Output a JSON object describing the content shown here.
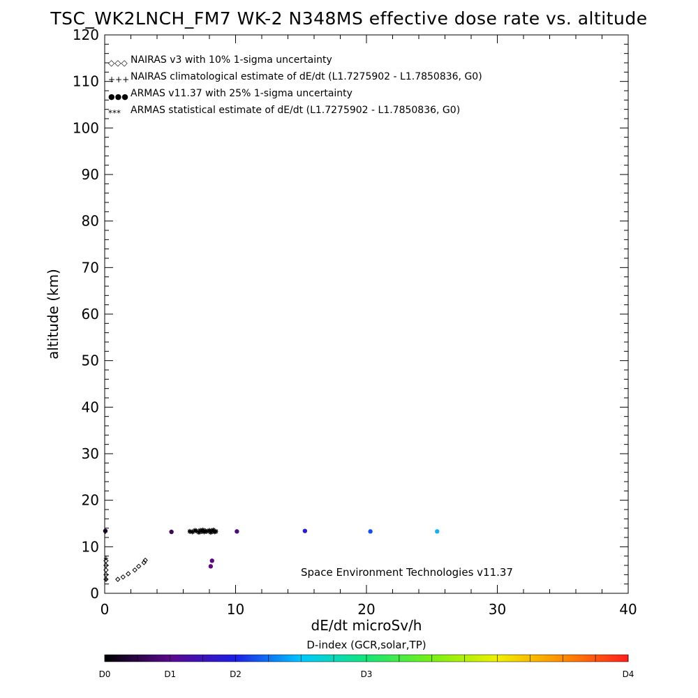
{
  "chart_data": {
    "type": "scatter",
    "title": "TSC_WK2LNCH_FM7 WK-2 N348MS effective dose rate vs. altitude",
    "xlabel": "dE/dt microSv/h",
    "ylabel": "altitude (km)",
    "xlim": [
      0,
      40
    ],
    "ylim": [
      0,
      120
    ],
    "x_ticks": [
      "0",
      "10",
      "20",
      "30",
      "40"
    ],
    "y_ticks": [
      "0",
      "10",
      "20",
      "30",
      "40",
      "50",
      "60",
      "70",
      "80",
      "90",
      "100",
      "110",
      "120"
    ],
    "grid": false,
    "legend_position": "top-left",
    "legend": [
      {
        "symbol": "◇◇◇",
        "label": "NAIRAS v3 with 10% 1-sigma uncertainty"
      },
      {
        "symbol": "+++",
        "label": "NAIRAS climatological estimate of dE/dt (L1.7275902 - L1.7850836, G0)"
      },
      {
        "symbol": "●●●",
        "label": "ARMAS v11.37 with 25% 1-sigma uncertainty"
      },
      {
        "symbol": "***",
        "label": "ARMAS statistical estimate of dE/dt (L1.7275902 - L1.7850836, G0)"
      }
    ],
    "annotation": "Space Environment Technologies v11.37",
    "series": [
      {
        "name": "NAIRAS v3 with 10% 1-sigma uncertainty",
        "marker": "diamond",
        "color": "#000000",
        "points": [
          [
            0.1,
            3.0
          ],
          [
            0.1,
            4.0
          ],
          [
            0.1,
            5.0
          ],
          [
            0.1,
            6.0
          ],
          [
            0.1,
            7.0
          ],
          [
            1.0,
            3.0
          ],
          [
            1.4,
            3.5
          ],
          [
            1.8,
            4.2
          ],
          [
            2.3,
            5.0
          ],
          [
            2.6,
            5.8
          ],
          [
            3.0,
            6.6
          ],
          [
            3.1,
            7.1
          ]
        ]
      },
      {
        "name": "NAIRAS climatological estimate of dE/dt (L1.7275902 - L1.7850836, G0)",
        "marker": "plus",
        "color": "#000000",
        "points": [
          [
            0.05,
            13.2
          ],
          [
            0.1,
            3.0
          ],
          [
            0.1,
            7.5
          ]
        ]
      },
      {
        "name": "ARMAS v11.37 with 25% 1-sigma uncertainty",
        "marker": "circle",
        "points": [
          [
            0.05,
            13.4,
            "#1a0020"
          ],
          [
            5.1,
            13.2,
            "#3c0a50"
          ],
          [
            8.2,
            7.0,
            "#5a0a7e"
          ],
          [
            8.1,
            5.8,
            "#5a0a7e"
          ],
          [
            10.1,
            13.3,
            "#4a0d7a"
          ],
          [
            15.3,
            13.4,
            "#2a1ec8"
          ],
          [
            20.3,
            13.3,
            "#1450f0"
          ],
          [
            25.4,
            13.3,
            "#15aef0"
          ]
        ]
      },
      {
        "name": "ARMAS statistical estimate of dE/dt (L1.7275902 - L1.7850836, G0)",
        "marker": "star",
        "color": "#000000",
        "points": [
          [
            6.5,
            13.3
          ],
          [
            6.7,
            13.2
          ],
          [
            6.9,
            13.5
          ],
          [
            7.0,
            13.4
          ],
          [
            7.2,
            13.1
          ],
          [
            7.3,
            13.5
          ],
          [
            7.4,
            13.3
          ],
          [
            7.5,
            13.6
          ],
          [
            7.6,
            13.2
          ],
          [
            7.7,
            13.4
          ],
          [
            7.8,
            13.3
          ],
          [
            8.0,
            13.5
          ],
          [
            8.1,
            13.1
          ],
          [
            8.2,
            13.4
          ],
          [
            8.3,
            13.6
          ],
          [
            8.4,
            13.2
          ],
          [
            8.5,
            13.3
          ]
        ]
      }
    ],
    "colorbar": {
      "title": "D-index (GCR,solar,TP)",
      "labels": [
        "D0",
        "D1",
        "D2",
        "D3",
        "D4"
      ],
      "label_fractions": [
        0.0,
        0.125,
        0.25,
        0.5,
        1.0
      ],
      "colors": [
        "#000000",
        "#5a0a8c",
        "#1e1ee6",
        "#00c8ff",
        "#14e678",
        "#78f014",
        "#f0f000",
        "#ff8c00",
        "#ff1e1e"
      ]
    }
  }
}
